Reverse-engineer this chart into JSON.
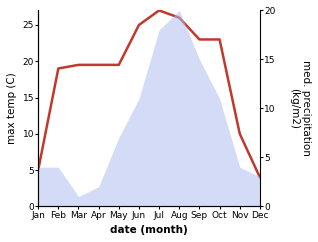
{
  "months": [
    "Jan",
    "Feb",
    "Mar",
    "Apr",
    "May",
    "Jun",
    "Jul",
    "Aug",
    "Sep",
    "Oct",
    "Nov",
    "Dec"
  ],
  "month_indices": [
    1,
    2,
    3,
    4,
    5,
    6,
    7,
    8,
    9,
    10,
    11,
    12
  ],
  "temperature": [
    5,
    19,
    19.5,
    19.5,
    19.5,
    25,
    27,
    26,
    23,
    23,
    10,
    4
  ],
  "precipitation": [
    4,
    4,
    1,
    2,
    7,
    11,
    18,
    20,
    15,
    11,
    4,
    3
  ],
  "temp_color": "#c0392b",
  "precip_color": "#b0bef0",
  "precip_fill_alpha": 0.55,
  "temp_linewidth": 1.8,
  "ylim_left": [
    0,
    27
  ],
  "ylim_right": [
    0,
    20
  ],
  "ylabel_left": "max temp (C)",
  "ylabel_right": "med. precipitation\n(kg/m2)",
  "xlabel": "date (month)",
  "left_yticks": [
    0,
    5,
    10,
    15,
    20,
    25
  ],
  "right_yticks": [
    0,
    5,
    10,
    15,
    20
  ],
  "background_color": "#ffffff",
  "label_fontsize": 7.5,
  "tick_fontsize": 6.5
}
